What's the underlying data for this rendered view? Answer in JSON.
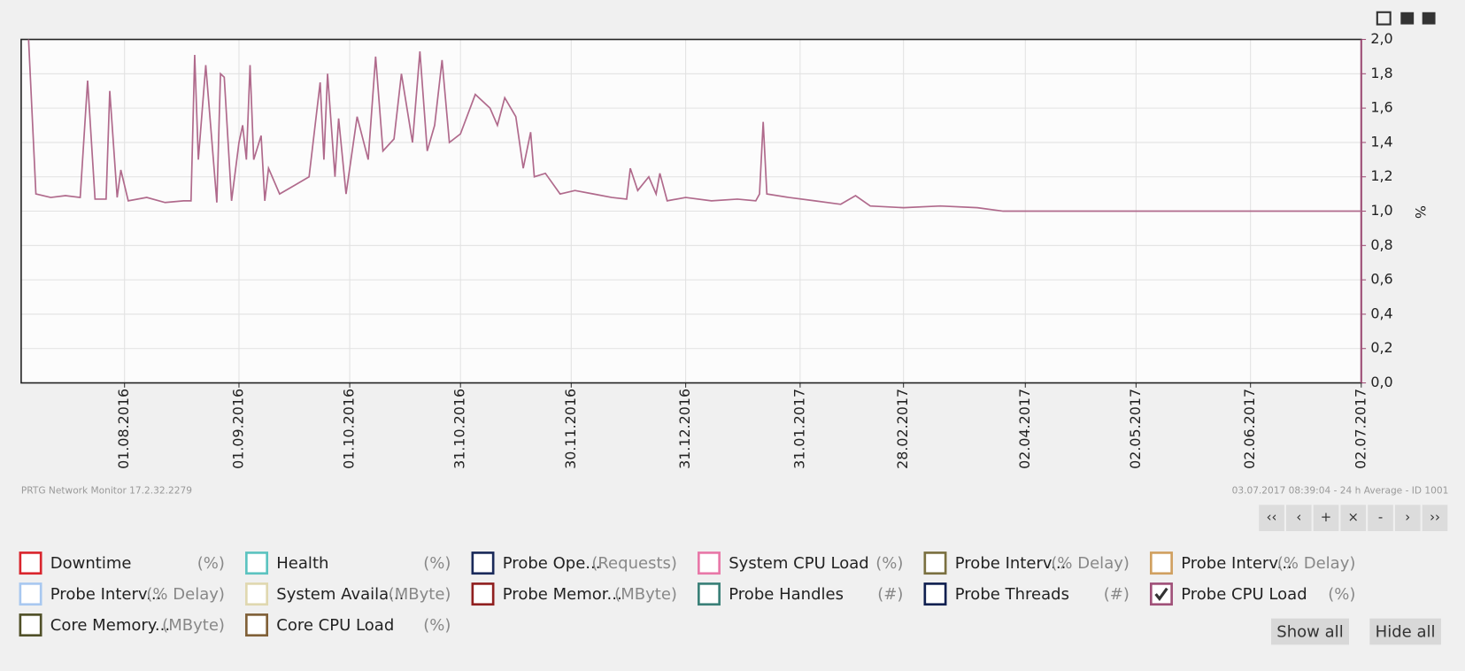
{
  "chart_data": {
    "type": "line",
    "x": [
      "06.07.2016",
      "08.07.2016",
      "12.07.2016",
      "16.07.2016",
      "20.07.2016",
      "22.07.2016",
      "24.07.2016",
      "27.07.2016",
      "28.07.2016",
      "30.07.2016",
      "31.07.2016",
      "02.08.2016",
      "07.08.2016",
      "12.08.2016",
      "17.08.2016",
      "19.08.2016",
      "20.08.2016",
      "21.08.2016",
      "23.08.2016",
      "26.08.2016",
      "27.08.2016",
      "28.08.2016",
      "30.08.2016",
      "01.09.2016",
      "02.09.2016",
      "03.09.2016",
      "04.09.2016",
      "05.09.2016",
      "07.09.2016",
      "08.09.2016",
      "09.09.2016",
      "12.09.2016",
      "16.09.2016",
      "20.09.2016",
      "23.09.2016",
      "24.09.2016",
      "25.09.2016",
      "27.09.2016",
      "28.09.2016",
      "30.09.2016",
      "03.10.2016",
      "06.10.2016",
      "08.10.2016",
      "10.10.2016",
      "13.10.2016",
      "15.10.2016",
      "18.10.2016",
      "20.10.2016",
      "22.10.2016",
      "24.10.2016",
      "26.10.2016",
      "28.10.2016",
      "31.10.2016",
      "04.11.2016",
      "08.11.2016",
      "10.11.2016",
      "12.11.2016",
      "15.11.2016",
      "17.11.2016",
      "19.11.2016",
      "20.11.2016",
      "23.11.2016",
      "27.11.2016",
      "01.12.2016",
      "06.12.2016",
      "11.12.2016",
      "15.12.2016",
      "16.12.2016",
      "18.12.2016",
      "21.12.2016",
      "23.12.2016",
      "24.12.2016",
      "26.12.2016",
      "31.12.2016",
      "07.01.2017",
      "14.01.2017",
      "19.01.2017",
      "20.01.2017",
      "21.01.2017",
      "22.01.2017",
      "28.01.2017",
      "04.02.2017",
      "11.02.2017",
      "15.02.2017",
      "19.02.2017",
      "28.02.2017",
      "10.03.2017",
      "20.03.2017",
      "27.03.2017",
      "02.04.2017",
      "20.04.2017",
      "10.05.2017",
      "01.06.2017",
      "20.06.2017",
      "02.07.2017"
    ],
    "series": [
      {
        "name": "Probe CPU Load",
        "color": "#b06a8c",
        "values": [
          2.0,
          1.1,
          1.08,
          1.09,
          1.08,
          1.76,
          1.07,
          1.07,
          1.7,
          1.08,
          1.24,
          1.06,
          1.08,
          1.05,
          1.06,
          1.06,
          1.91,
          1.3,
          1.85,
          1.05,
          1.8,
          1.78,
          1.06,
          1.4,
          1.5,
          1.3,
          1.85,
          1.3,
          1.44,
          1.06,
          1.25,
          1.1,
          1.15,
          1.2,
          1.75,
          1.3,
          1.8,
          1.2,
          1.54,
          1.1,
          1.55,
          1.3,
          1.9,
          1.35,
          1.42,
          1.8,
          1.4,
          1.93,
          1.35,
          1.5,
          1.88,
          1.4,
          1.45,
          1.68,
          1.6,
          1.5,
          1.66,
          1.55,
          1.25,
          1.46,
          1.2,
          1.22,
          1.1,
          1.12,
          1.1,
          1.08,
          1.07,
          1.25,
          1.12,
          1.2,
          1.1,
          1.22,
          1.06,
          1.08,
          1.06,
          1.07,
          1.06,
          1.1,
          1.52,
          1.1,
          1.08,
          1.06,
          1.04,
          1.09,
          1.03,
          1.02,
          1.03,
          1.02,
          1.0,
          1.0,
          1.0,
          1.0,
          1.0,
          1.0,
          1.0
        ]
      }
    ],
    "xlim": [
      "04.07.2016",
      "02.07.2017"
    ],
    "xticks": [
      "01.08.2016",
      "01.09.2016",
      "01.10.2016",
      "31.10.2016",
      "30.11.2016",
      "31.12.2016",
      "31.01.2017",
      "28.02.2017",
      "02.04.2017",
      "02.05.2017",
      "02.06.2017",
      "02.07.2017"
    ],
    "ylim": [
      0,
      2
    ],
    "yticks": [
      {
        "value": 0,
        "label": "0,0"
      },
      {
        "value": 0.2,
        "label": "0,2"
      },
      {
        "value": 0.4,
        "label": "0,4"
      },
      {
        "value": 0.6,
        "label": "0,6"
      },
      {
        "value": 0.8,
        "label": "0,8"
      },
      {
        "value": 1,
        "label": "1,0"
      },
      {
        "value": 1.2,
        "label": "1,2"
      },
      {
        "value": 1.4,
        "label": "1,4"
      },
      {
        "value": 1.6,
        "label": "1,6"
      },
      {
        "value": 1.8,
        "label": "1,8"
      },
      {
        "value": 2,
        "label": "2,0"
      }
    ],
    "ylabel": "%",
    "grid": true
  },
  "footer": {
    "left": "PRTG Network Monitor 17.2.32.2279",
    "right": "03.07.2017 08:39:04 - 24 h Average - ID 1001"
  },
  "nav_buttons": [
    "‹‹",
    "‹",
    "+",
    "×",
    "-",
    "›",
    "››"
  ],
  "legend": [
    {
      "name": "Downtime",
      "unit": "(%)",
      "color": "#d9252d",
      "checked": false
    },
    {
      "name": "Health",
      "unit": "(%)",
      "color": "#5cc3c0",
      "checked": false
    },
    {
      "name": "Probe Ope...",
      "unit": "(Requests)",
      "color": "#1a2a5a",
      "checked": false
    },
    {
      "name": "System CPU Load",
      "unit": "(%)",
      "color": "#e878a8",
      "checked": false
    },
    {
      "name": "Probe Interv...",
      "unit": "(% Delay)",
      "color": "#7a7040",
      "checked": false
    },
    {
      "name": "Probe Interv...",
      "unit": "(% Delay)",
      "color": "#d0a060",
      "checked": false
    },
    {
      "name": "Probe Interv...",
      "unit": "(% Delay)",
      "color": "#a8c8f0",
      "checked": false
    },
    {
      "name": "System Availa...",
      "unit": "(MByte)",
      "color": "#e0d8b0",
      "checked": false
    },
    {
      "name": "Probe Memor...",
      "unit": "(MByte)",
      "color": "#902020",
      "checked": false
    },
    {
      "name": "Probe Handles",
      "unit": "(#)",
      "color": "#3a8078",
      "checked": false
    },
    {
      "name": "Probe Threads",
      "unit": "(#)",
      "color": "#102050",
      "checked": false
    },
    {
      "name": "Probe CPU Load",
      "unit": "(%)",
      "color": "#a05078",
      "checked": true
    },
    {
      "name": "Core Memory...",
      "unit": "(MByte)",
      "color": "#505028",
      "checked": false
    },
    {
      "name": "Core CPU Load",
      "unit": "(%)",
      "color": "#806038",
      "checked": false
    }
  ],
  "buttons": [
    "Show all",
    "Hide all"
  ]
}
